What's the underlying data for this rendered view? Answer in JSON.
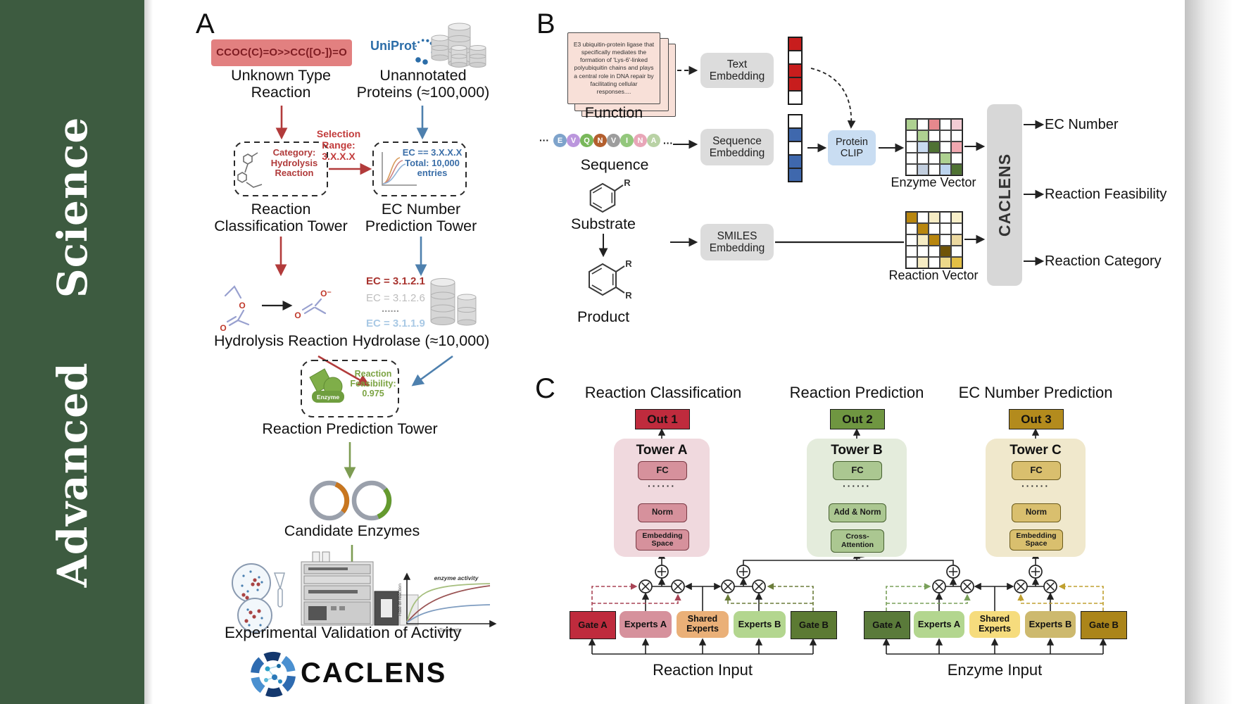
{
  "journal": {
    "title": "Advanced  Science"
  },
  "colors": {
    "sidebar_green": "#3d5b40",
    "uniprot_blue": "#2b6da8",
    "red_accent": "#b23b3b",
    "blue_accent": "#4e80ae",
    "green_accent": "#7d9c52",
    "out1_red": "#bf2b3d",
    "out2_green": "#6f9641",
    "out3_gold": "#b38b1d"
  },
  "panelA": {
    "label": "A",
    "smiles": "CCOC(C)=O>>CC([O-])=O",
    "uniprot": "UniProt",
    "unknown": "Unknown Type\nReaction",
    "unannotated": "Unannotated\nProteins (≈100,000)",
    "selection": "Selection\nRange:\n3.X.X.X",
    "category": "Category:\nHydrolysis\nReaction",
    "ec_box": "EC == 3.X.X.X\nTotal: 10,000\nentries",
    "classification_tower": "Reaction\nClassification Tower",
    "ec_tower": "EC Number\nPrediction Tower",
    "ec1": "EC = 3.1.2.1",
    "ec2": "EC = 3.1.2.6",
    "ec_dots": "......",
    "ec3": "EC = 3.1.1.9",
    "hydrolysis": "Hydrolysis Reaction",
    "hydrolase": "Hydrolase (≈10,000)",
    "enzyme": "Enzyme",
    "feasibility": "Reaction\nFeasibility:\n0.975",
    "prediction_tower": "Reaction Prediction Tower",
    "candidates": "Candidate Enzymes",
    "validation": "Experimental Validation of Activity",
    "logo": "CACLENS",
    "atoms": {
      "o": "O",
      "o_minus": "O⁻"
    },
    "graph": {
      "ylabel": "Rate of reaction",
      "xlabel": "Substrate",
      "annotation": "enzyme activity"
    }
  },
  "panelB": {
    "label": "B",
    "function_card": "E3 ubiquitin-protein ligase that specifically mediates the formation of 'Lys-6'-linked polyubiquitin chains and plays a central role in DNA repair by facilitating cellular responses....",
    "function": "Function",
    "sequence": "Sequence",
    "ellipsis": "···",
    "residues": [
      {
        "letter": "E",
        "color": "#7ea3cb"
      },
      {
        "letter": "V",
        "color": "#bb96dd"
      },
      {
        "letter": "Q",
        "color": "#79b85a"
      },
      {
        "letter": "N",
        "color": "#b35f2e"
      },
      {
        "letter": "V",
        "color": "#9d9d9d"
      },
      {
        "letter": "I",
        "color": "#93c77c"
      },
      {
        "letter": "N",
        "color": "#e8a6b8"
      },
      {
        "letter": "A",
        "color": "#b9d2a5"
      }
    ],
    "substrate": "Substrate",
    "product": "Product",
    "r_group": "R",
    "text_embedding": "Text\nEmbedding",
    "sequence_embedding": "Sequence\nEmbedding",
    "smiles_embedding": "SMILES\nEmbedding",
    "protein_clip": "Protein\nCLIP",
    "text_vector": [
      "#c81d1d",
      "#ffffff",
      "#c81d1d",
      "#c81d1d",
      "#ffffff"
    ],
    "sequence_vector": [
      "#ffffff",
      "#3f68ad",
      "#ffffff",
      "#3f68ad",
      "#3f68ad"
    ],
    "enzyme_matrix": [
      "#aed191",
      "#ffffff",
      "#e5888d",
      "#ffffff",
      "#f3ccd4",
      "#ffffff",
      "#aed191",
      "#ffffff",
      "#ffffff",
      "#ffffff",
      "#ffffff",
      "#c9daf0",
      "#4f7233",
      "#ffffff",
      "#f0a8b0",
      "#ffffff",
      "#ffffff",
      "#ffffff",
      "#aed191",
      "#ffffff",
      "#ffffff",
      "#c2cede",
      "#ffffff",
      "#bcd4ee",
      "#4f7233"
    ],
    "reaction_matrix": [
      "#b8860f",
      "#ffffff",
      "#f6ecc4",
      "#ffffff",
      "#f8efc9",
      "#ffffff",
      "#b8860f",
      "#ffffff",
      "#ffffff",
      "#ffffff",
      "#ffffff",
      "#f6ecc4",
      "#b8860f",
      "#ffffff",
      "#ecd9a0",
      "#ffffff",
      "#ffffff",
      "#ffffff",
      "#6f5408",
      "#ffffff",
      "#ffffff",
      "#f6ecc4",
      "#ffffff",
      "#edd98a",
      "#e3bf45"
    ],
    "enzyme_vector": "Enzyme Vector",
    "reaction_vector": "Reaction Vector",
    "caclens": "CACLENS",
    "outputs": [
      "EC Number",
      "Reaction Feasibility",
      "Reaction Category"
    ]
  },
  "panelC": {
    "label": "C",
    "titles": [
      "Reaction Classification",
      "Reaction Prediction",
      "EC Number Prediction"
    ],
    "outs": [
      "Out 1",
      "Out 2",
      "Out 3"
    ],
    "towerA": {
      "title": "Tower A",
      "fc": "FC",
      "dots": "······",
      "norm": "Norm",
      "embedding": "Embedding\nSpace"
    },
    "towerB": {
      "title": "Tower B",
      "fc": "FC",
      "dots": "······",
      "addnorm": "Add & Norm",
      "cross": "Cross-\nAttention"
    },
    "towerC": {
      "title": "Tower C",
      "fc": "FC",
      "dots": "······",
      "norm": "Norm",
      "embedding": "Embedding\nSpace"
    },
    "moe_reaction": {
      "gate_a": "Gate A",
      "experts_a": "Experts A",
      "shared": "Shared\nExperts",
      "experts_b": "Experts B",
      "gate_b": "Gate B",
      "input": "Reaction Input"
    },
    "moe_enzyme": {
      "gate_a": "Gate A",
      "experts_a": "Experts A",
      "shared": "Shared\nExperts",
      "experts_b": "Experts B",
      "gate_b": "Gate B",
      "input": "Enzyme Input"
    }
  }
}
